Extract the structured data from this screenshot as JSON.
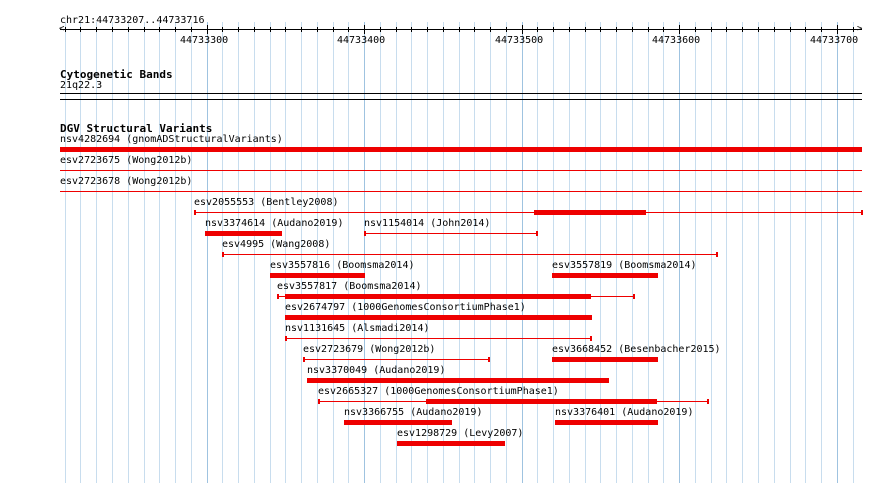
{
  "locus": "chr21:44733207..44733716",
  "ruler": {
    "start": 44733207,
    "end": 44733716,
    "ticks": [
      44733300,
      44733400,
      44733500,
      44733600,
      44733700
    ]
  },
  "cytoband": {
    "title": "Cytogenetic Bands",
    "band": "21q22.3"
  },
  "dgv": {
    "title": "DGV Structural Variants",
    "color": "#ee0000",
    "full_width": [
      {
        "label": "nsv4282694 (gnomADStructuralVariants)",
        "thick": true
      },
      {
        "label": "esv2723675 (Wong2012b)",
        "thick": false
      },
      {
        "label": "esv2723678 (Wong2012b)",
        "thick": false
      }
    ],
    "features": [
      {
        "label": "esv2055553 (Bentley2008)",
        "start": 44733292,
        "end": 44733716,
        "thick_start": 44733508,
        "thick_end": 44733579,
        "row": 0
      },
      {
        "label": "nsv3374614 (Audano2019)",
        "start": 44733299,
        "end": 44733347,
        "thick_start": 44733299,
        "thick_end": 44733347,
        "row": 1
      },
      {
        "label": "nsv1154014 (John2014)",
        "start": 44733400,
        "end": 44733510,
        "thick_start": null,
        "thick_end": null,
        "row": 1
      },
      {
        "label": "esv4995 (Wang2008)",
        "start": 44733310,
        "end": 44733624,
        "thick_start": null,
        "thick_end": null,
        "row": 2
      },
      {
        "label": "esv3557816 (Boomsma2014)",
        "start": 44733340,
        "end": 44733400,
        "thick_start": 44733340,
        "thick_end": 44733400,
        "row": 3
      },
      {
        "label": "esv3557819 (Boomsma2014)",
        "start": 44733519,
        "end": 44733586,
        "thick_start": 44733519,
        "thick_end": 44733586,
        "row": 3
      },
      {
        "label": "esv3557817 (Boomsma2014)",
        "start": 44733345,
        "end": 44733571,
        "thick_start": 44733350,
        "thick_end": 44733544,
        "row": 4
      },
      {
        "label": "esv2674797 (1000GenomesConsortiumPhase1)",
        "start": 44733350,
        "end": 44733544,
        "thick_start": 44733350,
        "thick_end": 44733544,
        "row": 5
      },
      {
        "label": "nsv1131645 (Alsmadi2014)",
        "start": 44733350,
        "end": 44733544,
        "thick_start": null,
        "thick_end": null,
        "row": 6
      },
      {
        "label": "esv2723679 (Wong2012b)",
        "start": 44733361,
        "end": 44733479,
        "thick_start": null,
        "thick_end": null,
        "row": 7
      },
      {
        "label": "esv3668452 (Besenbacher2015)",
        "start": 44733519,
        "end": 44733586,
        "thick_start": 44733519,
        "thick_end": 44733586,
        "row": 7
      },
      {
        "label": "nsv3370049 (Audano2019)",
        "start": 44733364,
        "end": 44733555,
        "thick_start": 44733364,
        "thick_end": 44733555,
        "row": 8
      },
      {
        "label": "esv2665327 (1000GenomesConsortiumPhase1)",
        "start": 44733371,
        "end": 44733618,
        "thick_start": 44733439,
        "thick_end": 44733586,
        "row": 9
      },
      {
        "label": "nsv3366755 (Audano2019)",
        "start": 44733387,
        "end": 44733455,
        "thick_start": 44733387,
        "thick_end": 44733455,
        "row": 10
      },
      {
        "label": "nsv3376401 (Audano2019)",
        "start": 44733521,
        "end": 44733586,
        "thick_start": 44733521,
        "thick_end": 44733586,
        "row": 10
      },
      {
        "label": "esv1298729 (Levy2007)",
        "start": 44733421,
        "end": 44733489,
        "thick_start": 44733421,
        "thick_end": 44733489,
        "row": 11
      }
    ]
  }
}
